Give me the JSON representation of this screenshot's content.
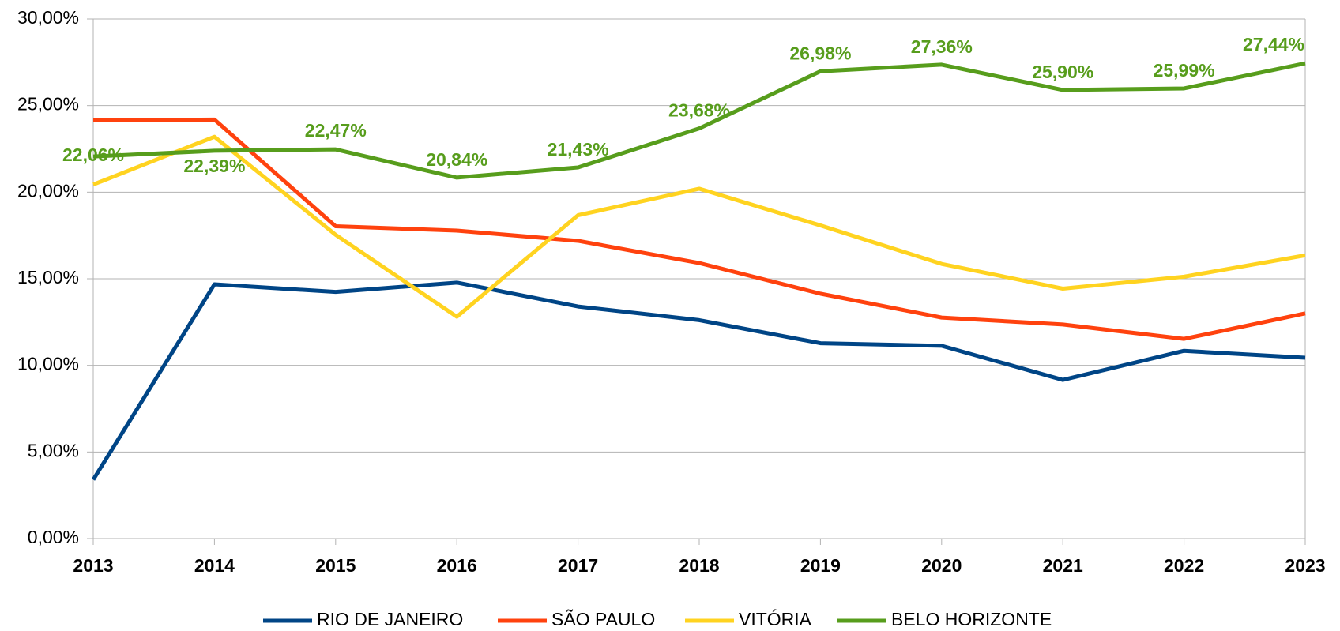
{
  "chart_data": {
    "type": "line",
    "categories": [
      "2013",
      "2014",
      "2015",
      "2016",
      "2017",
      "2018",
      "2019",
      "2020",
      "2021",
      "2022",
      "2023"
    ],
    "ylim": [
      0,
      30
    ],
    "yticks": [
      {
        "value": 0,
        "label": "0,00%"
      },
      {
        "value": 5,
        "label": "5,00%"
      },
      {
        "value": 10,
        "label": "10,00%"
      },
      {
        "value": 15,
        "label": "15,00%"
      },
      {
        "value": 20,
        "label": "20,00%"
      },
      {
        "value": 25,
        "label": "25,00%"
      },
      {
        "value": 30,
        "label": "30,00%"
      }
    ],
    "grid": true,
    "legend": "bottom",
    "series": [
      {
        "name": "RIO DE JANEIRO",
        "color": "#004586",
        "values": [
          3.4,
          14.68,
          14.24,
          14.78,
          13.4,
          12.61,
          11.28,
          11.13,
          9.16,
          10.84,
          10.44
        ]
      },
      {
        "name": "SÃO PAULO",
        "color": "#ff420e",
        "values": [
          24.14,
          24.19,
          18.03,
          17.78,
          17.19,
          15.91,
          14.14,
          12.76,
          12.36,
          11.53,
          13.0
        ]
      },
      {
        "name": "VITÓRIA",
        "color": "#ffd320",
        "values": [
          20.44,
          23.2,
          17.54,
          12.81,
          18.67,
          20.2,
          18.08,
          15.86,
          14.43,
          15.12,
          16.35
        ]
      },
      {
        "name": "BELO HORIZONTE",
        "color": "#579d1c",
        "values": [
          22.06,
          22.39,
          22.47,
          20.84,
          21.43,
          23.68,
          26.98,
          27.36,
          25.9,
          25.99,
          27.44
        ],
        "value_labels": [
          "22,06%",
          "22,39%",
          "22,47%",
          "20,84%",
          "21,43%",
          "23,68%",
          "26,98%",
          "27,36%",
          "25,90%",
          "25,99%",
          "27,44%"
        ]
      }
    ]
  }
}
